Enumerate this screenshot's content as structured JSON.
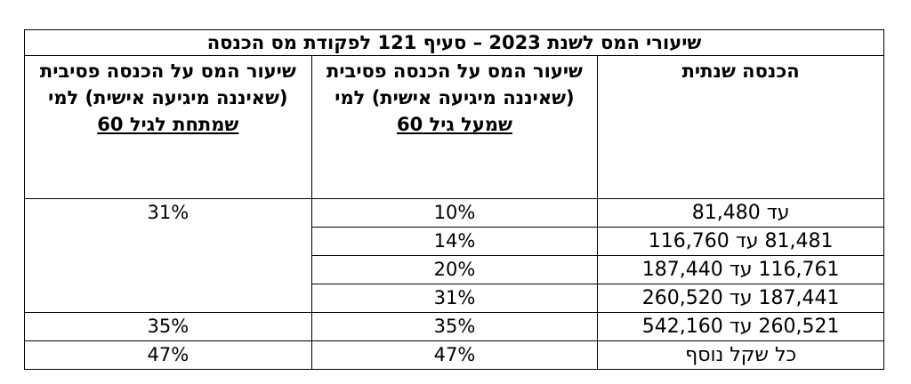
{
  "table": {
    "title": "שיעורי המס לשנת 2023 – סעיף 121 לפקודת מס הכנסה",
    "headers": {
      "income": "הכנסה שנתית",
      "over60_main": "שיעור המס על הכנסה פסיבית (שאיננה מיגיעה אישית) למי",
      "over60_underlined": "שמעל גיל 60",
      "under60_main": "שיעור המס על הכנסה פסיבית (שאיננה מיגיעה אישית) למי",
      "under60_underlined": "שמתחת לגיל 60"
    },
    "rows": [
      {
        "income": "עד 81,480",
        "over60": "10%"
      },
      {
        "income": "81,481 עד 116,760",
        "over60": "14%"
      },
      {
        "income": "116,761 עד 187,440",
        "over60": "20%"
      },
      {
        "income": "187,441 עד 260,520",
        "over60": "31%"
      },
      {
        "income": "260,521 עד 542,160",
        "over60": "35%"
      },
      {
        "income": "כל שקל נוסף",
        "over60": "47%"
      }
    ],
    "under60_values": [
      "31%",
      "35%",
      "47%"
    ]
  }
}
